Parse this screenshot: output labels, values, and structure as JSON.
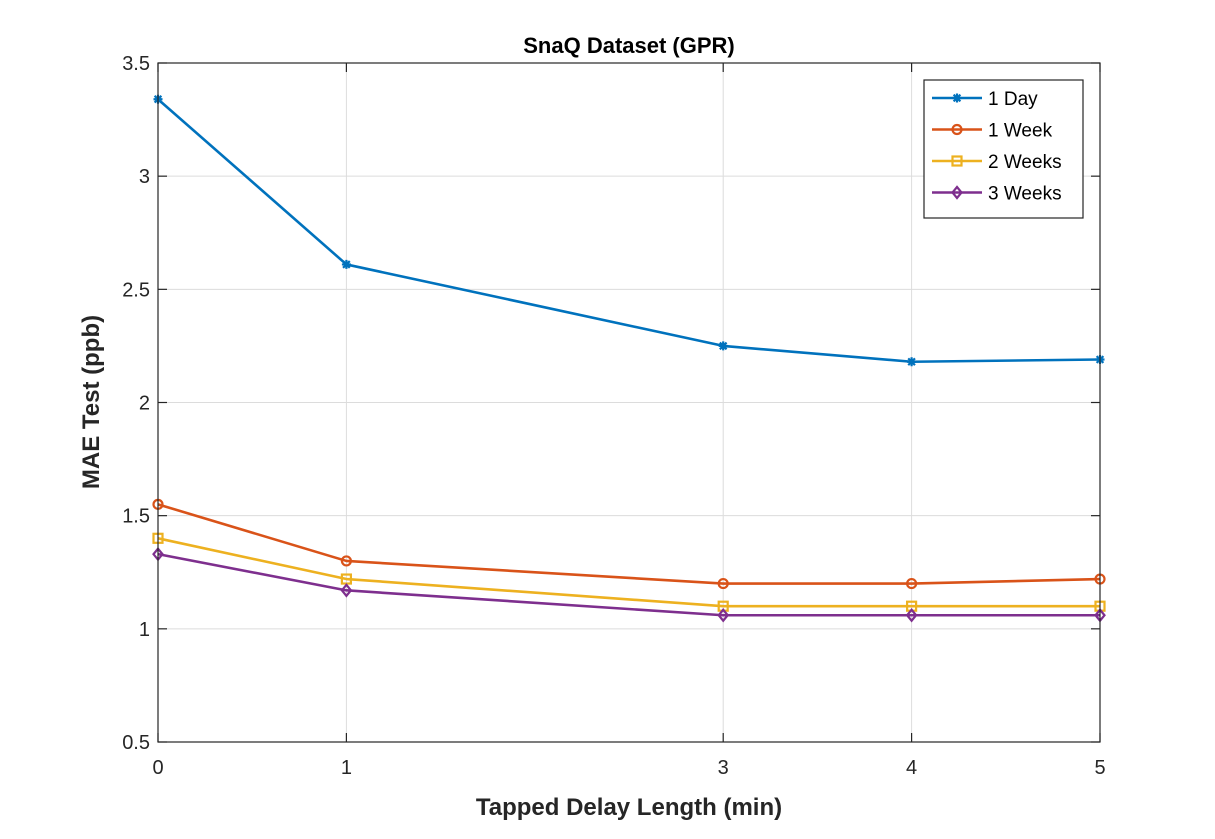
{
  "chart_data": {
    "type": "line",
    "title": "SnaQ Dataset (GPR)",
    "xlabel": "Tapped Delay Length (min)",
    "ylabel": "MAE Test (ppb)",
    "xlim": [
      0,
      5
    ],
    "ylim": [
      0.5,
      3.5
    ],
    "xticks": [
      0,
      1,
      3,
      4,
      5
    ],
    "xtick_labels": [
      "0",
      "1",
      "3",
      "4",
      "5"
    ],
    "yticks": [
      0.5,
      1,
      1.5,
      2,
      2.5,
      3,
      3.5
    ],
    "ytick_labels": [
      "0.5",
      "1",
      "1.5",
      "2",
      "2.5",
      "3",
      "3.5"
    ],
    "grid": true,
    "legend_position": "top-right",
    "x": [
      0,
      1,
      3,
      4,
      5
    ],
    "series": [
      {
        "name": "1 Day",
        "values": [
          3.34,
          2.61,
          2.25,
          2.18,
          2.19
        ],
        "color": "#0072BD",
        "marker": "asterisk"
      },
      {
        "name": "1 Week",
        "values": [
          1.55,
          1.3,
          1.2,
          1.2,
          1.22
        ],
        "color": "#D95319",
        "marker": "circle"
      },
      {
        "name": "2 Weeks",
        "values": [
          1.4,
          1.22,
          1.1,
          1.1,
          1.1
        ],
        "color": "#EDB120",
        "marker": "square"
      },
      {
        "name": "3 Weeks",
        "values": [
          1.33,
          1.17,
          1.06,
          1.06,
          1.06
        ],
        "color": "#7E2F8E",
        "marker": "diamond"
      }
    ]
  }
}
